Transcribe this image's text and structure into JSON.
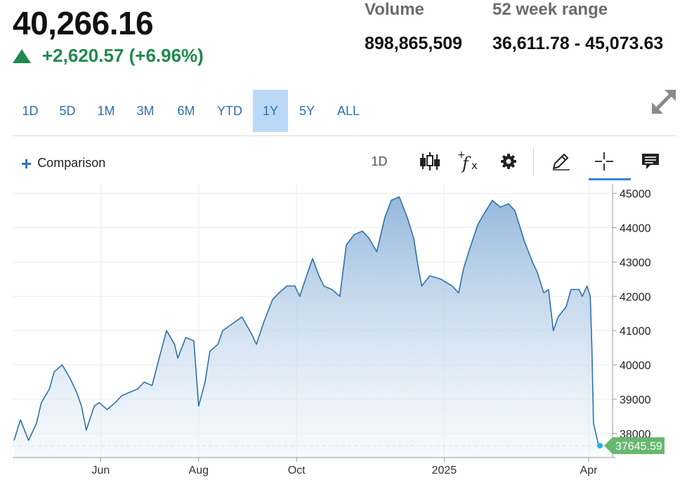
{
  "quote": {
    "price": "40,266.16",
    "change": "+2,620.57 (+6.96%)",
    "direction_icon": "triangle-up-icon",
    "change_color": "#1e8a4e"
  },
  "stats": {
    "volume_label": "Volume",
    "volume_value": "898,865,509",
    "range_label": "52 week range",
    "range_value": "36,611.78 - 45,073.63"
  },
  "range_tabs": [
    "1D",
    "5D",
    "1M",
    "3M",
    "6M",
    "YTD",
    "1Y",
    "5Y",
    "ALL"
  ],
  "active_range": "1Y",
  "toolbar": {
    "comparison_label": "Comparison",
    "interval_label": "1D",
    "icons": [
      "candlestick-icon",
      "function-icon",
      "gear-icon",
      "pencil-icon",
      "crosshair-icon",
      "comment-icon"
    ],
    "active_icon": "crosshair-icon"
  },
  "colors": {
    "accent": "#2f6fb2",
    "line": "#2e72ad",
    "active_tab_bg": "#b9d9f7",
    "last_price_badge": "#67b86f"
  },
  "chart_data": {
    "type": "area",
    "x_tick_labels": [
      "Jun",
      "Aug",
      "Oct",
      "2025",
      "Apr"
    ],
    "y_ticks": [
      38000,
      39000,
      40000,
      41000,
      42000,
      43000,
      44000,
      45000
    ],
    "ylim": [
      37300,
      45280
    ],
    "y_axis_side": "right",
    "grid": true,
    "last_value_label": "37645.59",
    "series": [
      {
        "x": [
          "2024-04-08",
          "2024-04-12",
          "2024-04-17",
          "2024-04-22",
          "2024-04-25",
          "2024-04-30",
          "2024-05-03",
          "2024-05-08",
          "2024-05-13",
          "2024-05-17",
          "2024-05-20",
          "2024-05-23",
          "2024-05-28",
          "2024-05-31",
          "2024-06-05",
          "2024-06-10",
          "2024-06-14",
          "2024-06-19",
          "2024-06-24",
          "2024-06-28",
          "2024-07-03",
          "2024-07-08",
          "2024-07-12",
          "2024-07-17",
          "2024-07-19",
          "2024-07-24",
          "2024-07-29",
          "2024-08-01",
          "2024-08-05",
          "2024-08-08",
          "2024-08-13",
          "2024-08-16",
          "2024-08-22",
          "2024-08-28",
          "2024-09-03",
          "2024-09-06",
          "2024-09-11",
          "2024-09-16",
          "2024-09-20",
          "2024-09-25",
          "2024-09-30",
          "2024-10-03",
          "2024-10-08",
          "2024-10-11",
          "2024-10-15",
          "2024-10-18",
          "2024-10-23",
          "2024-10-28",
          "2024-11-01",
          "2024-11-06",
          "2024-11-11",
          "2024-11-15",
          "2024-11-20",
          "2024-11-25",
          "2024-11-29",
          "2024-12-04",
          "2024-12-09",
          "2024-12-13",
          "2024-12-16",
          "2024-12-18",
          "2024-12-23",
          "2024-12-30",
          "2025-01-06",
          "2025-01-10",
          "2025-01-13",
          "2025-01-17",
          "2025-01-22",
          "2025-01-27",
          "2025-01-31",
          "2025-02-05",
          "2025-02-10",
          "2025-02-14",
          "2025-02-20",
          "2025-02-25",
          "2025-02-28",
          "2025-03-04",
          "2025-03-07",
          "2025-03-10",
          "2025-03-13",
          "2025-03-18",
          "2025-03-21",
          "2025-03-26",
          "2025-03-28",
          "2025-03-31",
          "2025-04-02",
          "2025-04-03",
          "2025-04-04",
          "2025-04-07",
          "2025-04-08"
        ],
        "values": [
          37800,
          38400,
          37800,
          38300,
          38900,
          39300,
          39800,
          40000,
          39600,
          39200,
          38800,
          38100,
          38800,
          38900,
          38700,
          38900,
          39100,
          39200,
          39300,
          39500,
          39400,
          40300,
          41000,
          40600,
          40200,
          40800,
          40700,
          38800,
          39500,
          40400,
          40600,
          41000,
          41200,
          41400,
          40900,
          40600,
          41300,
          41900,
          42100,
          42300,
          42300,
          42000,
          42700,
          43100,
          42600,
          42300,
          42200,
          42000,
          43500,
          43800,
          43900,
          43700,
          43300,
          44300,
          44800,
          44900,
          44300,
          43700,
          42800,
          42300,
          42600,
          42500,
          42300,
          42100,
          42800,
          43400,
          44100,
          44500,
          44800,
          44600,
          44700,
          44500,
          43600,
          43000,
          42700,
          42100,
          42200,
          41000,
          41400,
          41700,
          42200,
          42200,
          42000,
          42300,
          42000,
          40500,
          38300,
          37700,
          37645.59
        ]
      }
    ]
  }
}
